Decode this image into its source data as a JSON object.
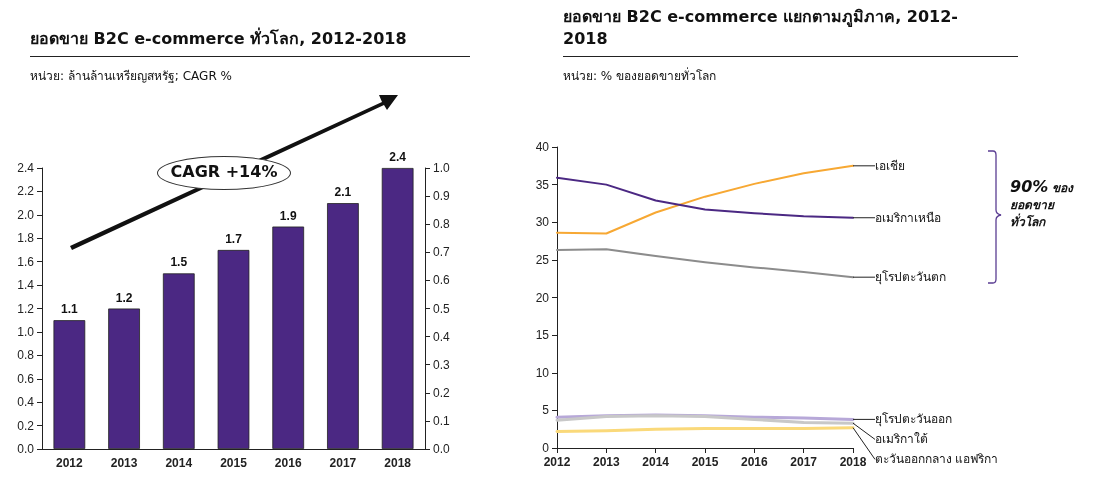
{
  "chart_data": [
    {
      "type": "bar",
      "title": "ยอดขาย B2C e-commerce ทั่วโลก, 2012-2018",
      "subtitle": "หน่วย: ล้านล้านเหรียญสหรัฐ; CAGR %",
      "annotations": [
        "CAGR +14%"
      ],
      "categories": [
        "2012",
        "2013",
        "2014",
        "2015",
        "2016",
        "2017",
        "2018"
      ],
      "series": [
        {
          "color": "#4b2883",
          "values": [
            1.1,
            1.2,
            1.5,
            1.7,
            1.9,
            2.1,
            2.4
          ]
        }
      ],
      "data_labels": true,
      "ylim": [
        0,
        2.4
      ],
      "yticks": [
        {
          "value": 0,
          "label": "0.0"
        },
        {
          "value": 0.2,
          "label": "0.2"
        },
        {
          "value": 0.4,
          "label": "0.4"
        },
        {
          "value": 0.6,
          "label": "0.6"
        },
        {
          "value": 0.8,
          "label": "0.8"
        },
        {
          "value": 1,
          "label": "1.0"
        },
        {
          "value": 1.2,
          "label": "1.2"
        },
        {
          "value": 1.4,
          "label": "1.4"
        },
        {
          "value": 1.6,
          "label": "1.6"
        },
        {
          "value": 1.8,
          "label": "1.8"
        },
        {
          "value": 2,
          "label": "2.0"
        },
        {
          "value": 2.2,
          "label": "2.2"
        },
        {
          "value": 2.4,
          "label": "2.4"
        }
      ],
      "y2lim": [
        0,
        1
      ],
      "y2ticks": [
        {
          "value": 0,
          "label": "0.0"
        },
        {
          "value": 0.1,
          "label": "0.1"
        },
        {
          "value": 0.2,
          "label": "0.2"
        },
        {
          "value": 0.3,
          "label": "0.3"
        },
        {
          "value": 0.4,
          "label": "0.4"
        },
        {
          "value": 0.5,
          "label": "0.5"
        },
        {
          "value": 0.6,
          "label": "0.6"
        },
        {
          "value": 0.7,
          "label": "0.7"
        },
        {
          "value": 0.8,
          "label": "0.8"
        },
        {
          "value": 0.9,
          "label": "0.9"
        },
        {
          "value": 1,
          "label": "1.0"
        }
      ]
    },
    {
      "type": "line",
      "title": "ยอดขาย B2C e-commerce แยกตามภูมิภาค, 2012-2018",
      "subtitle": "หน่วย: % ของยอดขายทั่วโลก",
      "annotations": [
        "90% ของ\nยอดขาย\nทั่วโลก"
      ],
      "x": [
        2012,
        2013,
        2014,
        2015,
        2016,
        2017,
        2018
      ],
      "series": [
        {
          "name": "เอเชีย",
          "color": "#f7a833",
          "values": [
            28.6,
            28.5,
            31.3,
            33.4,
            35.1,
            36.5,
            37.5
          ]
        },
        {
          "name": "อเมริกาเหนือ",
          "color": "#4b2883",
          "values": [
            35.9,
            35.0,
            32.9,
            31.7,
            31.2,
            30.8,
            30.6
          ]
        },
        {
          "name": "ยุโรปตะวันตก",
          "color": "#8c8c8c",
          "values": [
            26.3,
            26.4,
            25.5,
            24.7,
            24.0,
            23.4,
            22.7
          ]
        },
        {
          "name": "ยุโรปตะวันออก",
          "color": "#b7a8d8",
          "values": [
            4.1,
            4.3,
            4.4,
            4.3,
            4.1,
            4.0,
            3.8
          ]
        },
        {
          "name": "อเมริกาใต้",
          "color": "#c8c8c8",
          "values": [
            3.7,
            4.2,
            4.3,
            4.2,
            3.8,
            3.4,
            3.3
          ]
        },
        {
          "name": "ตะวันออกกลาง แอฟริกา",
          "color": "#fad97a",
          "values": [
            2.2,
            2.3,
            2.5,
            2.6,
            2.6,
            2.6,
            2.7
          ]
        }
      ],
      "marker": "none",
      "xlim": [
        2012,
        2018
      ],
      "xticks": [
        2012,
        2013,
        2014,
        2015,
        2016,
        2017,
        2018
      ],
      "ylim": [
        0,
        40
      ],
      "yticks": [
        0,
        5,
        10,
        15,
        20,
        25,
        30,
        35,
        40
      ]
    }
  ]
}
